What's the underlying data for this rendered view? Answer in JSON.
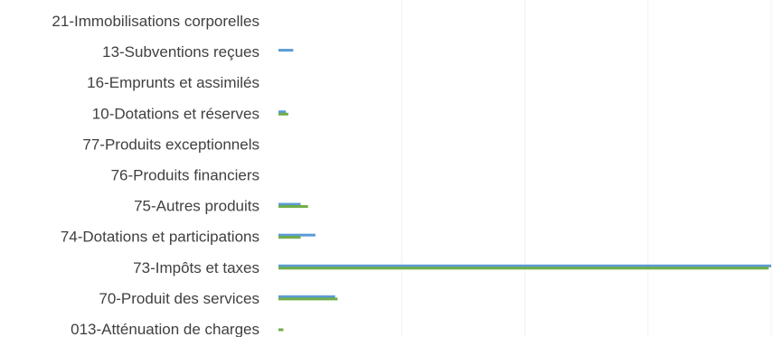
{
  "chart_data": {
    "type": "bar",
    "orientation": "horizontal",
    "grid": true,
    "categories": [
      "21-Immobilisations corporelles",
      "13-Subventions reçues",
      "16-Emprunts et assimilés",
      "10-Dotations et réserves",
      "77-Produits exceptionnels",
      "76-Produits financiers",
      "75-Autres produits",
      "74-Dotations et participations",
      "73-Impôts et taxes",
      "70-Produit des services",
      "013-Atténuation de charges"
    ],
    "series": [
      {
        "color": "#5b9bd5",
        "values": [
          0,
          3.0,
          0,
          1.5,
          0,
          0,
          4.5,
          7.5,
          100,
          11.5,
          0
        ]
      },
      {
        "color": "#70ad47",
        "values": [
          0,
          0,
          0,
          2.0,
          0,
          0,
          6.0,
          4.5,
          99.5,
          12.0,
          1.0
        ]
      }
    ],
    "xlabel": "",
    "ylabel": "",
    "legend": "none"
  }
}
